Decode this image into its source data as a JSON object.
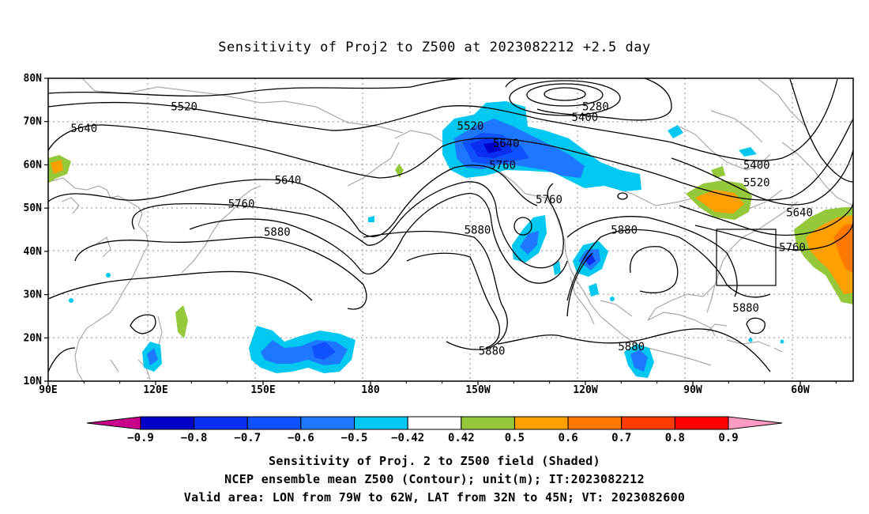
{
  "title": "Sensitivity of Proj2 to Z500 at 2023082212 +2.5 day",
  "lat_ticks": [
    "80N",
    "70N",
    "60N",
    "50N",
    "40N",
    "30N",
    "20N",
    "10N"
  ],
  "lon_ticks": [
    "90E",
    "120E",
    "150E",
    "180",
    "150W",
    "120W",
    "90W",
    "60W"
  ],
  "contour_labels": [
    {
      "value": "5520",
      "lon": 128,
      "lat": 73.5
    },
    {
      "value": "5640",
      "lon": 100,
      "lat": 68.5
    },
    {
      "value": "5640",
      "lon": 157,
      "lat": 56.5
    },
    {
      "value": "5760",
      "lon": 144,
      "lat": 51.0
    },
    {
      "value": "5880",
      "lon": 154,
      "lat": 44.5
    },
    {
      "value": "5520",
      "lon": -152,
      "lat": 69.0
    },
    {
      "value": "5280",
      "lon": -117,
      "lat": 73.5
    },
    {
      "value": "5400",
      "lon": -120,
      "lat": 71.0
    },
    {
      "value": "5640",
      "lon": -142,
      "lat": 65.0
    },
    {
      "value": "5760",
      "lon": -143,
      "lat": 60.0
    },
    {
      "value": "5760",
      "lon": -130,
      "lat": 52.0
    },
    {
      "value": "5880",
      "lon": -150,
      "lat": 45.0
    },
    {
      "value": "5880",
      "lon": -109,
      "lat": 45.0
    },
    {
      "value": "5880",
      "lon": -146,
      "lat": 17.0
    },
    {
      "value": "5880",
      "lon": -107,
      "lat": 18.0
    },
    {
      "value": "5400",
      "lon": -72,
      "lat": 60.0
    },
    {
      "value": "5520",
      "lon": -72,
      "lat": 56.0
    },
    {
      "value": "5640",
      "lon": -60,
      "lat": 49.0
    },
    {
      "value": "5760",
      "lon": -62,
      "lat": 41.0
    },
    {
      "value": "5880",
      "lon": -75,
      "lat": 27.0
    }
  ],
  "valid_area": {
    "lon_min": -79,
    "lon_max": -62,
    "lat_min": 32,
    "lat_max": 45
  },
  "colorbar": {
    "labels": [
      "-0.9",
      "-0.8",
      "-0.7",
      "-0.6",
      "-0.5",
      "-0.42",
      "0.42",
      "0.5",
      "0.6",
      "0.7",
      "0.8",
      "0.9"
    ],
    "colors": [
      "#c8008c",
      "#0000c8",
      "#0a2ff0",
      "#0f50ff",
      "#1e78ff",
      "#00c8f0",
      "#ffffff",
      "#96c83c",
      "#ffa000",
      "#ff7800",
      "#ff3c00",
      "#ff0000",
      "#ff9ac0"
    ]
  },
  "footer": [
    "Sensitivity of Proj. 2 to Z500 field (Shaded)",
    "NCEP ensemble mean Z500 (Contour); unit(m); IT:2023082212",
    "Valid area: LON from 79W to 62W, LAT from 32N to 45N; VT: 2023082600"
  ]
}
